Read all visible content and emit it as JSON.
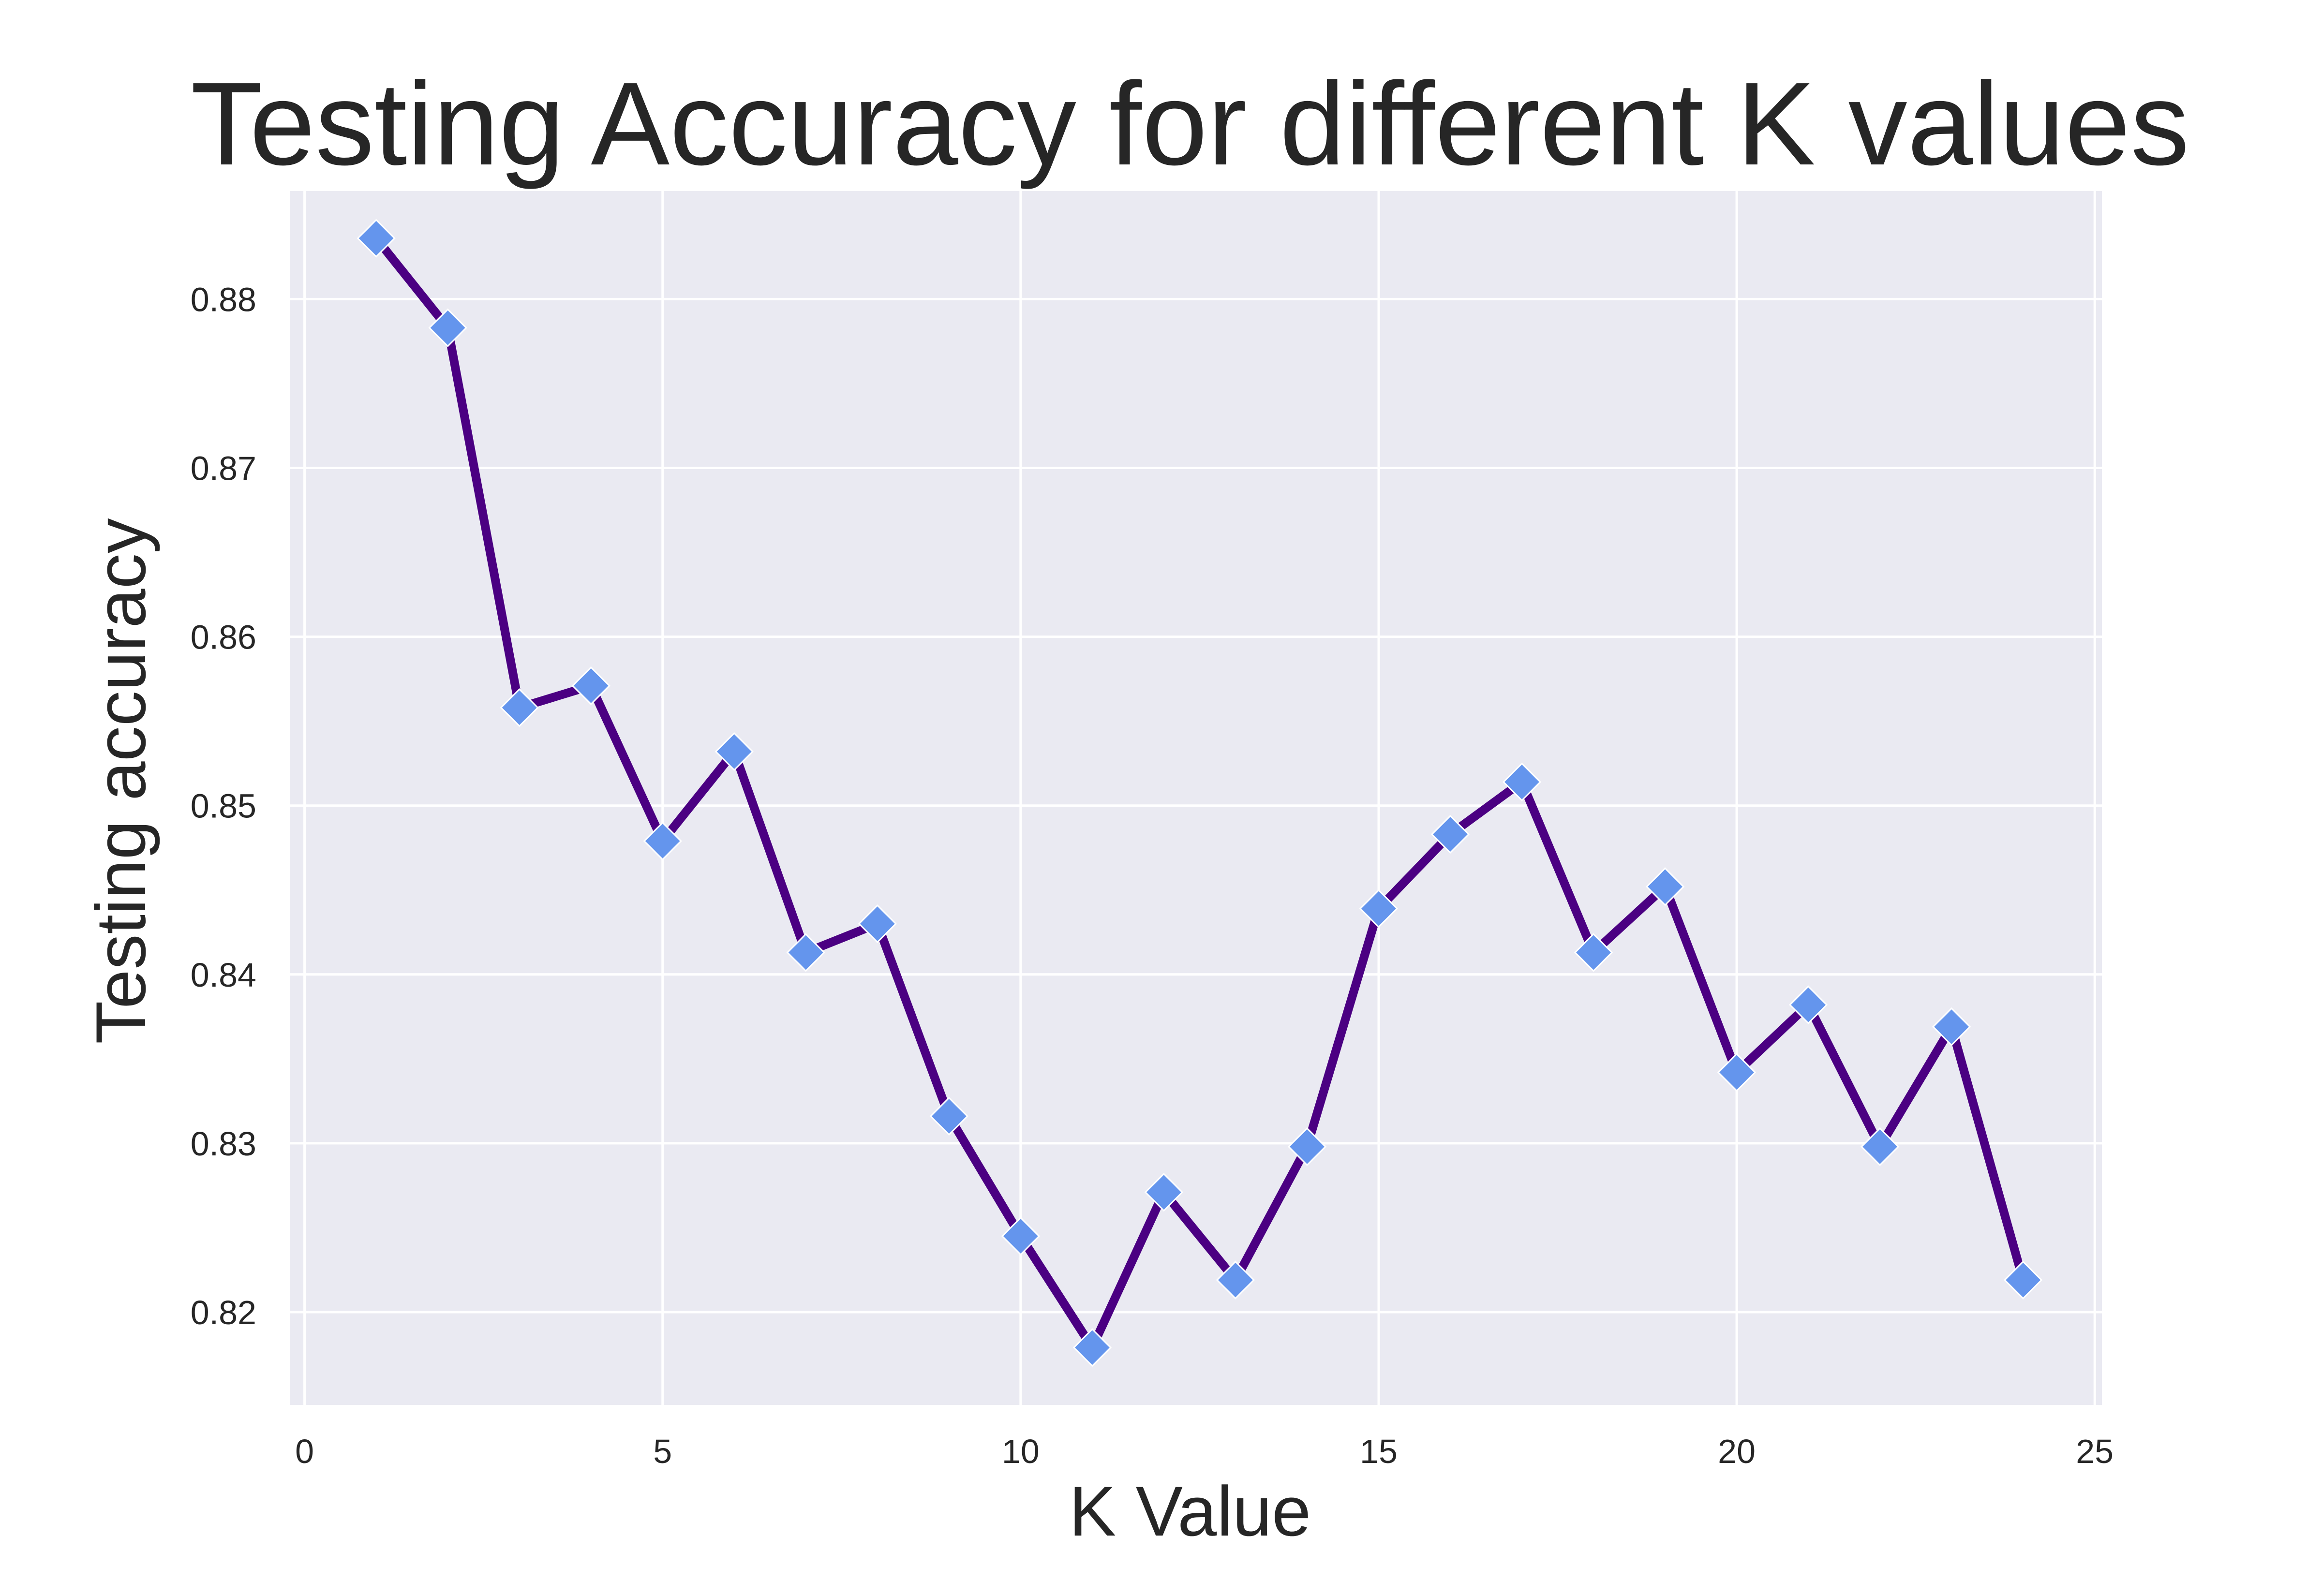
{
  "chart_data": {
    "type": "line",
    "title": "Testing Accuracy for different K values",
    "xlabel": "K Value",
    "ylabel": "Testing accuracy",
    "xlim": [
      -0.2,
      25.1
    ],
    "ylim": [
      0.8145,
      0.8864
    ],
    "xticks": [
      0,
      5,
      10,
      15,
      20,
      25
    ],
    "yticks": [
      0.82,
      0.83,
      0.84,
      0.85,
      0.86,
      0.87,
      0.88
    ],
    "ytick_labels": [
      "0.82",
      "0.83",
      "0.84",
      "0.85",
      "0.86",
      "0.87",
      "0.88"
    ],
    "grid": true,
    "line_color": "#4b0082",
    "marker_color": "#6495ed",
    "background_color": "#eaeaf2",
    "marker": "diamond",
    "x": [
      1,
      2,
      3,
      4,
      5,
      6,
      7,
      8,
      9,
      10,
      11,
      12,
      13,
      14,
      15,
      16,
      17,
      18,
      19,
      20,
      21,
      22,
      23,
      24
    ],
    "values": [
      0.8836,
      0.8783,
      0.8558,
      0.8571,
      0.8479,
      0.8532,
      0.8413,
      0.843,
      0.8316,
      0.8245,
      0.8179,
      0.8271,
      0.8219,
      0.8298,
      0.8439,
      0.8483,
      0.8514,
      0.8413,
      0.8452,
      0.8342,
      0.8382,
      0.8298,
      0.8369,
      0.8219
    ]
  }
}
